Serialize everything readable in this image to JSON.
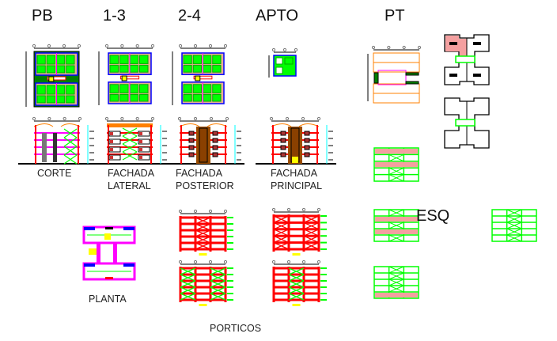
{
  "titles": {
    "pb": "PB",
    "f13": "1-3",
    "f24": "2-4",
    "apto": "APTO",
    "pt": "PT",
    "esq": "ESQ"
  },
  "labels": {
    "corte": "CORTE",
    "fachada_lateral": [
      "FACHADA",
      "LATERAL"
    ],
    "fachada_posterior": [
      "FACHADA",
      "POSTERIOR"
    ],
    "fachada_principal": [
      "FACHADA",
      "PRINCIPAL"
    ],
    "planta": "PLANTA",
    "porticos": "PORTICOS"
  },
  "colors": {
    "red": "#ff0000",
    "green": "#00ff00",
    "darkgreen": "#008000",
    "magenta": "#ff00ff",
    "blue": "#0000ff",
    "orange": "#ff8000",
    "brown": "#994c00",
    "yellow": "#ffff00",
    "cyan": "#00ffff"
  }
}
